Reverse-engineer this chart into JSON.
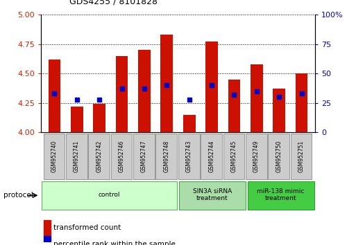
{
  "title": "GDS4255 / 8101828",
  "samples": [
    "GSM952740",
    "GSM952741",
    "GSM952742",
    "GSM952746",
    "GSM952747",
    "GSM952748",
    "GSM952743",
    "GSM952744",
    "GSM952745",
    "GSM952749",
    "GSM952750",
    "GSM952751"
  ],
  "red_values": [
    4.62,
    4.22,
    4.24,
    4.65,
    4.7,
    4.83,
    4.15,
    4.77,
    4.45,
    4.58,
    4.37,
    4.5
  ],
  "blue_values": [
    33,
    28,
    28,
    37,
    37,
    40,
    28,
    40,
    32,
    35,
    30,
    33
  ],
  "ylim_left": [
    4.0,
    5.0
  ],
  "ylim_right": [
    0,
    100
  ],
  "yticks_left": [
    4.0,
    4.25,
    4.5,
    4.75,
    5.0
  ],
  "yticks_right": [
    0,
    25,
    50,
    75,
    100
  ],
  "groups": [
    {
      "label": "control",
      "start": 0,
      "end": 6,
      "color": "#ccffcc",
      "edge_color": "#66aa66"
    },
    {
      "label": "SIN3A siRNA\ntreatment",
      "start": 6,
      "end": 9,
      "color": "#aaddaa",
      "edge_color": "#44aa44"
    },
    {
      "label": "miR-138 mimic\ntreatment",
      "start": 9,
      "end": 12,
      "color": "#44cc44",
      "edge_color": "#22aa22"
    }
  ],
  "bar_color": "#cc1100",
  "blue_color": "#0000cc",
  "left_tick_color": "#cc2200",
  "right_tick_color": "#0000cc",
  "bar_width": 0.55,
  "protocol_label": "protocol"
}
